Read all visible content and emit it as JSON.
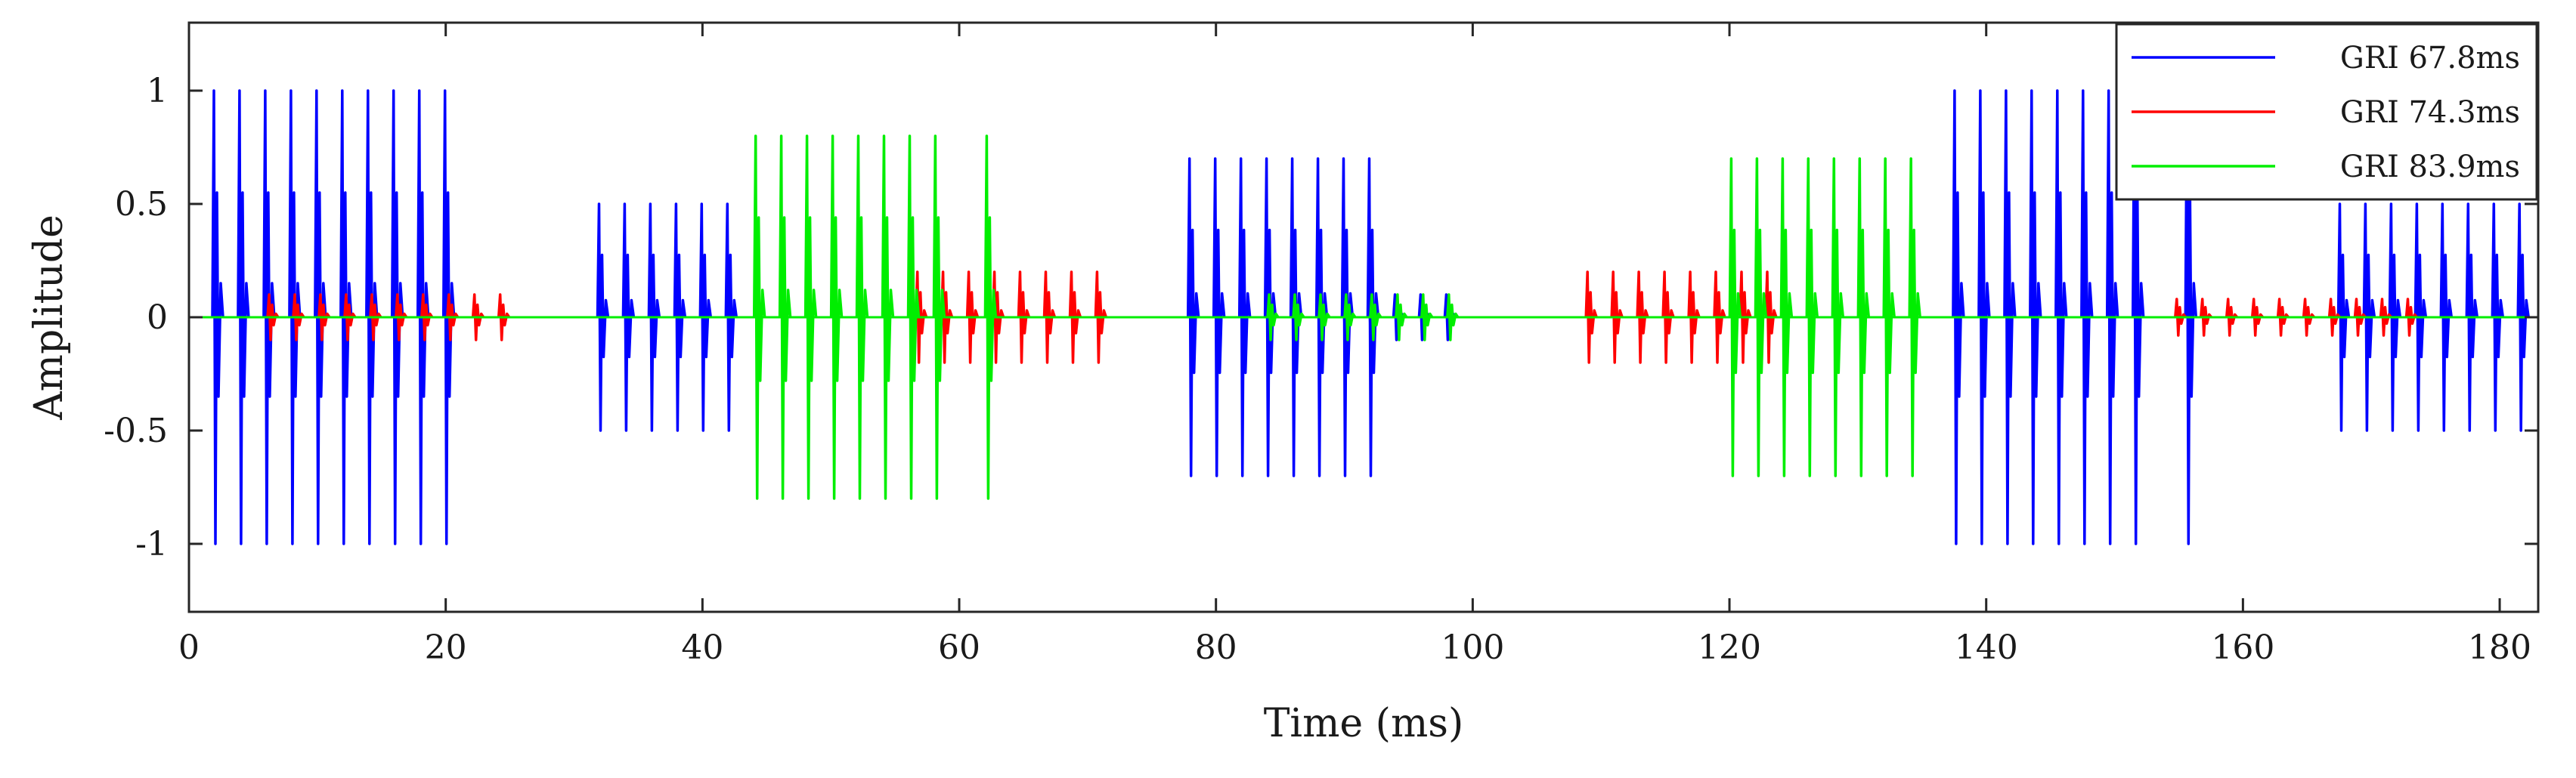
{
  "chart_data": {
    "type": "line",
    "title": "",
    "xlabel": "Time (ms)",
    "ylabel": "Amplitude",
    "xlim": [
      0,
      183
    ],
    "ylim": [
      -1.3,
      1.3
    ],
    "grid": false,
    "legend_position": "top-right",
    "x_ticks": [
      0,
      20,
      40,
      60,
      80,
      100,
      120,
      140,
      160,
      180
    ],
    "x_tick_labels": [
      "0",
      "20",
      "40",
      "60",
      "80",
      "100",
      "120",
      "140",
      "160",
      "180"
    ],
    "y_ticks": [
      1,
      0.5,
      0,
      -0.5,
      -1
    ],
    "y_tick_labels": [
      "1",
      "0.5",
      "0",
      "-0.5",
      "-1"
    ],
    "series": [
      {
        "name": "GRI 67.8ms",
        "color": "#0000ff",
        "pulse_groups": [
          {
            "start": 2.0,
            "spacing": 2.0,
            "count": 10,
            "amplitude": 1.0,
            "step_fraction": 0.8
          },
          {
            "start": 32.0,
            "spacing": 2.0,
            "count": 6,
            "amplitude": 0.5,
            "step_fraction": 0.8
          },
          {
            "start": 78.0,
            "spacing": 2.0,
            "count": 8,
            "amplitude": 0.7,
            "step_fraction": 0.8
          },
          {
            "start": 84.0,
            "spacing": 2.0,
            "count": 8,
            "amplitude": 0.1,
            "step_fraction": 0.8
          },
          {
            "start": 137.6,
            "spacing": 2.0,
            "count": 8,
            "amplitude": 1.0,
            "step_fraction": 0.8
          },
          {
            "start": 155.7,
            "spacing": 2.0,
            "count": 1,
            "amplitude": 1.0,
            "step_fraction": 0.8
          },
          {
            "start": 167.6,
            "spacing": 2.0,
            "count": 8,
            "amplitude": 0.5,
            "step_fraction": 0.8
          }
        ]
      },
      {
        "name": "GRI 74.3ms",
        "color": "#ff0000",
        "pulse_groups": [
          {
            "start": 6.3,
            "spacing": 2.0,
            "count": 10,
            "amplitude": 0.1,
            "step_fraction": 0.8
          },
          {
            "start": 56.8,
            "spacing": 2.0,
            "count": 8,
            "amplitude": 0.2,
            "step_fraction": 0.8
          },
          {
            "start": 109.0,
            "spacing": 2.0,
            "count": 8,
            "amplitude": 0.2,
            "step_fraction": 0.8
          },
          {
            "start": 154.9,
            "spacing": 2.0,
            "count": 10,
            "amplitude": 0.08,
            "step_fraction": 0.8
          }
        ]
      },
      {
        "name": "GRI 83.9ms",
        "color": "#00ee00",
        "pulse_groups": [
          {
            "start": 44.2,
            "spacing": 2.0,
            "count": 8,
            "amplitude": 0.8,
            "step_fraction": 0.8
          },
          {
            "start": 62.2,
            "spacing": 2.0,
            "count": 1,
            "amplitude": 0.8,
            "step_fraction": 0.8
          },
          {
            "start": 84.2,
            "spacing": 2.0,
            "count": 8,
            "amplitude": 0.1,
            "step_fraction": 0.8
          },
          {
            "start": 120.2,
            "spacing": 2.0,
            "count": 8,
            "amplitude": 0.7,
            "step_fraction": 0.8
          }
        ]
      }
    ]
  }
}
